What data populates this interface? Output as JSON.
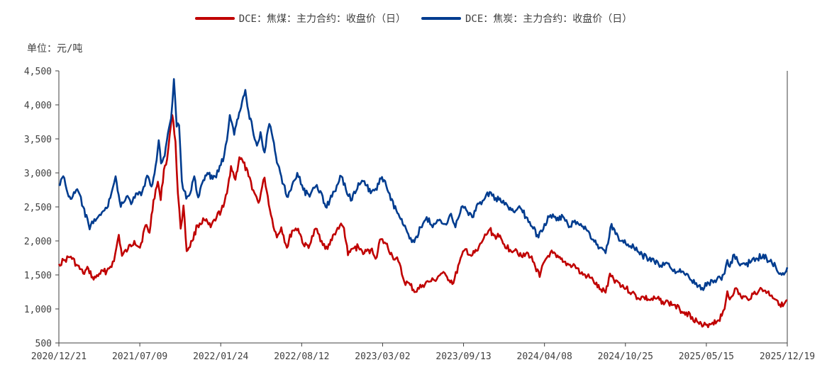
{
  "chart_data": {
    "type": "line",
    "unit_label": "单位：元/吨",
    "ylim": [
      500,
      4500
    ],
    "yticks": [
      500,
      1000,
      1500,
      2000,
      2500,
      3000,
      3500,
      4000,
      4500
    ],
    "ytick_labels": [
      "500",
      "1,000",
      "1,500",
      "2,000",
      "2,500",
      "3,000",
      "3,500",
      "4,000",
      "4,500"
    ],
    "x_start": "2020-12-21",
    "x_end": "2025-12-19",
    "xtick_labels": [
      "2020/12/21",
      "2021/07/09",
      "2022/01/24",
      "2022/08/12",
      "2023/03/02",
      "2023/09/13",
      "2024/04/08",
      "2024/10/25",
      "2025/05/15",
      "2025/12/19"
    ],
    "grid": false,
    "legend_position": "top-center",
    "series": [
      {
        "name": "DCE：焦煤：主力合约：收盘价（日）",
        "color": "#C00000",
        "points": [
          [
            "2020-12-21",
            1660
          ],
          [
            "2021-01-05",
            1720
          ],
          [
            "2021-01-20",
            1770
          ],
          [
            "2021-02-03",
            1650
          ],
          [
            "2021-02-20",
            1520
          ],
          [
            "2021-03-05",
            1590
          ],
          [
            "2021-03-18",
            1430
          ],
          [
            "2021-04-01",
            1520
          ],
          [
            "2021-04-20",
            1560
          ],
          [
            "2021-05-08",
            1700
          ],
          [
            "2021-05-20",
            2090
          ],
          [
            "2021-05-28",
            1780
          ],
          [
            "2021-06-12",
            1880
          ],
          [
            "2021-06-28",
            2000
          ],
          [
            "2021-07-12",
            1900
          ],
          [
            "2021-07-26",
            2230
          ],
          [
            "2021-08-05",
            2120
          ],
          [
            "2021-08-15",
            2600
          ],
          [
            "2021-08-26",
            2870
          ],
          [
            "2021-09-02",
            2600
          ],
          [
            "2021-09-10",
            3050
          ],
          [
            "2021-09-18",
            3200
          ],
          [
            "2021-09-25",
            3580
          ],
          [
            "2021-10-01",
            3850
          ],
          [
            "2021-10-09",
            3460
          ],
          [
            "2021-10-15",
            2700
          ],
          [
            "2021-10-22",
            2180
          ],
          [
            "2021-10-29",
            2520
          ],
          [
            "2021-11-06",
            1850
          ],
          [
            "2021-11-20",
            2000
          ],
          [
            "2021-12-03",
            2230
          ],
          [
            "2021-12-20",
            2310
          ],
          [
            "2022-01-05",
            2200
          ],
          [
            "2022-01-20",
            2350
          ],
          [
            "2022-02-06",
            2500
          ],
          [
            "2022-02-15",
            2700
          ],
          [
            "2022-02-25",
            3100
          ],
          [
            "2022-03-08",
            2900
          ],
          [
            "2022-03-18",
            3230
          ],
          [
            "2022-03-28",
            3150
          ],
          [
            "2022-04-10",
            2950
          ],
          [
            "2022-04-25",
            2700
          ],
          [
            "2022-05-05",
            2560
          ],
          [
            "2022-05-20",
            2930
          ],
          [
            "2022-06-05",
            2380
          ],
          [
            "2022-06-20",
            2050
          ],
          [
            "2022-07-01",
            2200
          ],
          [
            "2022-07-15",
            1900
          ],
          [
            "2022-07-28",
            2150
          ],
          [
            "2022-08-12",
            2180
          ],
          [
            "2022-08-28",
            1920
          ],
          [
            "2022-09-10",
            1940
          ],
          [
            "2022-09-25",
            2180
          ],
          [
            "2022-10-10",
            2000
          ],
          [
            "2022-10-25",
            1880
          ],
          [
            "2022-11-10",
            2100
          ],
          [
            "2022-11-25",
            2230
          ],
          [
            "2022-12-05",
            2190
          ],
          [
            "2022-12-15",
            1790
          ],
          [
            "2022-12-28",
            1890
          ],
          [
            "2023-01-10",
            1910
          ],
          [
            "2023-01-25",
            1820
          ],
          [
            "2023-02-10",
            1870
          ],
          [
            "2023-02-25",
            1760
          ],
          [
            "2023-03-05",
            2020
          ],
          [
            "2023-03-20",
            1960
          ],
          [
            "2023-04-05",
            1780
          ],
          [
            "2023-04-20",
            1700
          ],
          [
            "2023-05-05",
            1400
          ],
          [
            "2023-05-20",
            1350
          ],
          [
            "2023-06-02",
            1250
          ],
          [
            "2023-06-20",
            1350
          ],
          [
            "2023-07-05",
            1400
          ],
          [
            "2023-07-20",
            1420
          ],
          [
            "2023-08-05",
            1520
          ],
          [
            "2023-08-20",
            1470
          ],
          [
            "2023-09-05",
            1380
          ],
          [
            "2023-09-20",
            1680
          ],
          [
            "2023-10-05",
            1880
          ],
          [
            "2023-10-20",
            1780
          ],
          [
            "2023-11-05",
            1860
          ],
          [
            "2023-11-20",
            2040
          ],
          [
            "2023-12-05",
            2170
          ],
          [
            "2023-12-15",
            2080
          ],
          [
            "2023-12-28",
            2060
          ],
          [
            "2024-01-10",
            1950
          ],
          [
            "2024-01-25",
            1870
          ],
          [
            "2024-02-08",
            1880
          ],
          [
            "2024-02-25",
            1760
          ],
          [
            "2024-03-10",
            1820
          ],
          [
            "2024-03-25",
            1680
          ],
          [
            "2024-04-08",
            1470
          ],
          [
            "2024-04-20",
            1700
          ],
          [
            "2024-05-05",
            1830
          ],
          [
            "2024-05-20",
            1760
          ],
          [
            "2024-06-05",
            1690
          ],
          [
            "2024-06-20",
            1650
          ],
          [
            "2024-07-05",
            1640
          ],
          [
            "2024-07-20",
            1520
          ],
          [
            "2024-08-05",
            1480
          ],
          [
            "2024-08-20",
            1420
          ],
          [
            "2024-09-05",
            1290
          ],
          [
            "2024-09-20",
            1240
          ],
          [
            "2024-10-01",
            1520
          ],
          [
            "2024-10-10",
            1440
          ],
          [
            "2024-10-25",
            1380
          ],
          [
            "2024-11-10",
            1300
          ],
          [
            "2024-11-25",
            1240
          ],
          [
            "2024-12-10",
            1160
          ],
          [
            "2024-12-25",
            1170
          ],
          [
            "2025-01-10",
            1130
          ],
          [
            "2025-01-25",
            1150
          ],
          [
            "2025-02-10",
            1110
          ],
          [
            "2025-02-25",
            1090
          ],
          [
            "2025-03-10",
            1060
          ],
          [
            "2025-03-25",
            990
          ],
          [
            "2025-04-10",
            950
          ],
          [
            "2025-04-25",
            880
          ],
          [
            "2025-05-10",
            800
          ],
          [
            "2025-05-20",
            740
          ],
          [
            "2025-06-01",
            770
          ],
          [
            "2025-06-15",
            800
          ],
          [
            "2025-06-28",
            830
          ],
          [
            "2025-07-08",
            900
          ],
          [
            "2025-07-15",
            1000
          ],
          [
            "2025-07-22",
            1260
          ],
          [
            "2025-07-28",
            1140
          ],
          [
            "2025-08-10",
            1300
          ],
          [
            "2025-08-25",
            1180
          ],
          [
            "2025-09-10",
            1150
          ],
          [
            "2025-09-25",
            1220
          ],
          [
            "2025-10-10",
            1280
          ],
          [
            "2025-10-25",
            1270
          ],
          [
            "2025-11-10",
            1200
          ],
          [
            "2025-11-25",
            1120
          ],
          [
            "2025-12-08",
            1040
          ],
          [
            "2025-12-19",
            1130
          ]
        ]
      },
      {
        "name": "DCE：焦炭：主力合约：收盘价（日）",
        "color": "#003C8F",
        "points": [
          [
            "2020-12-21",
            2830
          ],
          [
            "2021-01-01",
            2950
          ],
          [
            "2021-01-12",
            2700
          ],
          [
            "2021-01-22",
            2620
          ],
          [
            "2021-02-05",
            2760
          ],
          [
            "2021-02-20",
            2500
          ],
          [
            "2021-03-08",
            2170
          ],
          [
            "2021-03-20",
            2320
          ],
          [
            "2021-04-05",
            2380
          ],
          [
            "2021-04-20",
            2480
          ],
          [
            "2021-05-05",
            2780
          ],
          [
            "2021-05-12",
            2950
          ],
          [
            "2021-05-25",
            2500
          ],
          [
            "2021-06-08",
            2650
          ],
          [
            "2021-06-20",
            2540
          ],
          [
            "2021-07-02",
            2700
          ],
          [
            "2021-07-15",
            2670
          ],
          [
            "2021-07-30",
            2960
          ],
          [
            "2021-08-10",
            2800
          ],
          [
            "2021-08-20",
            3100
          ],
          [
            "2021-08-28",
            3480
          ],
          [
            "2021-09-03",
            3140
          ],
          [
            "2021-09-12",
            3250
          ],
          [
            "2021-09-20",
            3580
          ],
          [
            "2021-09-28",
            3800
          ],
          [
            "2021-10-05",
            4380
          ],
          [
            "2021-10-12",
            3680
          ],
          [
            "2021-10-18",
            3700
          ],
          [
            "2021-10-25",
            2880
          ],
          [
            "2021-11-05",
            2620
          ],
          [
            "2021-11-15",
            2700
          ],
          [
            "2021-11-25",
            2950
          ],
          [
            "2021-12-05",
            2640
          ],
          [
            "2021-12-15",
            2850
          ],
          [
            "2021-12-28",
            3000
          ],
          [
            "2022-01-10",
            2910
          ],
          [
            "2022-01-25",
            3020
          ],
          [
            "2022-02-08",
            3260
          ],
          [
            "2022-02-15",
            3480
          ],
          [
            "2022-02-22",
            3850
          ],
          [
            "2022-03-05",
            3560
          ],
          [
            "2022-03-15",
            3800
          ],
          [
            "2022-03-25",
            4050
          ],
          [
            "2022-04-02",
            4220
          ],
          [
            "2022-04-10",
            3900
          ],
          [
            "2022-04-20",
            3650
          ],
          [
            "2022-05-01",
            3400
          ],
          [
            "2022-05-10",
            3600
          ],
          [
            "2022-05-20",
            3300
          ],
          [
            "2022-06-01",
            3720
          ],
          [
            "2022-06-10",
            3500
          ],
          [
            "2022-06-20",
            3150
          ],
          [
            "2022-07-01",
            2950
          ],
          [
            "2022-07-15",
            2650
          ],
          [
            "2022-07-28",
            2820
          ],
          [
            "2022-08-10",
            3000
          ],
          [
            "2022-08-25",
            2750
          ],
          [
            "2022-09-10",
            2650
          ],
          [
            "2022-09-25",
            2800
          ],
          [
            "2022-10-10",
            2700
          ],
          [
            "2022-10-20",
            2500
          ],
          [
            "2022-11-05",
            2650
          ],
          [
            "2022-11-20",
            2840
          ],
          [
            "2022-11-28",
            2950
          ],
          [
            "2022-12-10",
            2750
          ],
          [
            "2022-12-25",
            2600
          ],
          [
            "2023-01-10",
            2850
          ],
          [
            "2023-01-25",
            2880
          ],
          [
            "2023-02-10",
            2700
          ],
          [
            "2023-02-25",
            2750
          ],
          [
            "2023-03-05",
            2920
          ],
          [
            "2023-03-18",
            2880
          ],
          [
            "2023-04-01",
            2600
          ],
          [
            "2023-04-15",
            2450
          ],
          [
            "2023-05-01",
            2250
          ],
          [
            "2023-05-15",
            2100
          ],
          [
            "2023-05-30",
            1980
          ],
          [
            "2023-06-15",
            2200
          ],
          [
            "2023-06-30",
            2350
          ],
          [
            "2023-07-15",
            2200
          ],
          [
            "2023-07-30",
            2300
          ],
          [
            "2023-08-15",
            2250
          ],
          [
            "2023-08-30",
            2400
          ],
          [
            "2023-09-10",
            2200
          ],
          [
            "2023-09-25",
            2500
          ],
          [
            "2023-10-10",
            2430
          ],
          [
            "2023-10-25",
            2350
          ],
          [
            "2023-11-05",
            2550
          ],
          [
            "2023-11-20",
            2600
          ],
          [
            "2023-12-05",
            2720
          ],
          [
            "2023-12-20",
            2630
          ],
          [
            "2024-01-05",
            2560
          ],
          [
            "2024-01-20",
            2500
          ],
          [
            "2024-02-05",
            2420
          ],
          [
            "2024-02-20",
            2480
          ],
          [
            "2024-03-05",
            2350
          ],
          [
            "2024-03-20",
            2210
          ],
          [
            "2024-04-05",
            2050
          ],
          [
            "2024-04-20",
            2250
          ],
          [
            "2024-05-05",
            2380
          ],
          [
            "2024-05-20",
            2300
          ],
          [
            "2024-06-05",
            2360
          ],
          [
            "2024-06-20",
            2200
          ],
          [
            "2024-07-05",
            2300
          ],
          [
            "2024-07-20",
            2250
          ],
          [
            "2024-08-05",
            2150
          ],
          [
            "2024-08-20",
            2020
          ],
          [
            "2024-09-05",
            1900
          ],
          [
            "2024-09-20",
            1820
          ],
          [
            "2024-10-05",
            2250
          ],
          [
            "2024-10-15",
            2100
          ],
          [
            "2024-10-30",
            2000
          ],
          [
            "2024-11-15",
            1950
          ],
          [
            "2024-11-30",
            1900
          ],
          [
            "2024-12-15",
            1800
          ],
          [
            "2025-01-01",
            1760
          ],
          [
            "2025-01-20",
            1700
          ],
          [
            "2025-02-05",
            1640
          ],
          [
            "2025-02-20",
            1680
          ],
          [
            "2025-03-05",
            1580
          ],
          [
            "2025-03-20",
            1550
          ],
          [
            "2025-04-05",
            1520
          ],
          [
            "2025-04-20",
            1430
          ],
          [
            "2025-05-05",
            1380
          ],
          [
            "2025-05-20",
            1310
          ],
          [
            "2025-06-05",
            1380
          ],
          [
            "2025-06-20",
            1420
          ],
          [
            "2025-07-05",
            1450
          ],
          [
            "2025-07-15",
            1520
          ],
          [
            "2025-07-22",
            1720
          ],
          [
            "2025-07-28",
            1620
          ],
          [
            "2025-08-08",
            1800
          ],
          [
            "2025-08-20",
            1660
          ],
          [
            "2025-09-05",
            1650
          ],
          [
            "2025-09-20",
            1700
          ],
          [
            "2025-10-05",
            1740
          ],
          [
            "2025-10-20",
            1800
          ],
          [
            "2025-11-05",
            1700
          ],
          [
            "2025-11-20",
            1620
          ],
          [
            "2025-12-05",
            1500
          ],
          [
            "2025-12-19",
            1610
          ]
        ]
      }
    ]
  }
}
